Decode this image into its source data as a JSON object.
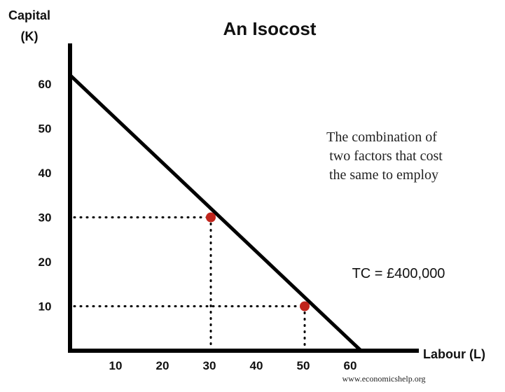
{
  "chart_data": {
    "type": "line",
    "title": "An Isocost",
    "ylabel_lines": [
      "Capital",
      "(K)"
    ],
    "xlabel": "Labour (L)",
    "x_ticks": [
      10,
      20,
      30,
      40,
      50,
      60
    ],
    "y_ticks": [
      10,
      20,
      30,
      40,
      50,
      60
    ],
    "xlim": [
      0,
      62
    ],
    "ylim": [
      0,
      62
    ],
    "grid": false,
    "series": [
      {
        "points": [
          {
            "x": 0,
            "y": 62
          },
          {
            "x": 62,
            "y": 0
          }
        ]
      }
    ],
    "highlighted_points": [
      {
        "x": 30,
        "y": 30
      },
      {
        "x": 50,
        "y": 10
      }
    ],
    "annotation_lines": [
      "The combination of",
      "two factors that cost",
      "the same to employ"
    ],
    "total_cost_label": "TC = £400,000",
    "credit": "www.economicshelp.org",
    "colors": {
      "line": "#000000",
      "point": "#c0241c",
      "guides": "#000000"
    }
  }
}
